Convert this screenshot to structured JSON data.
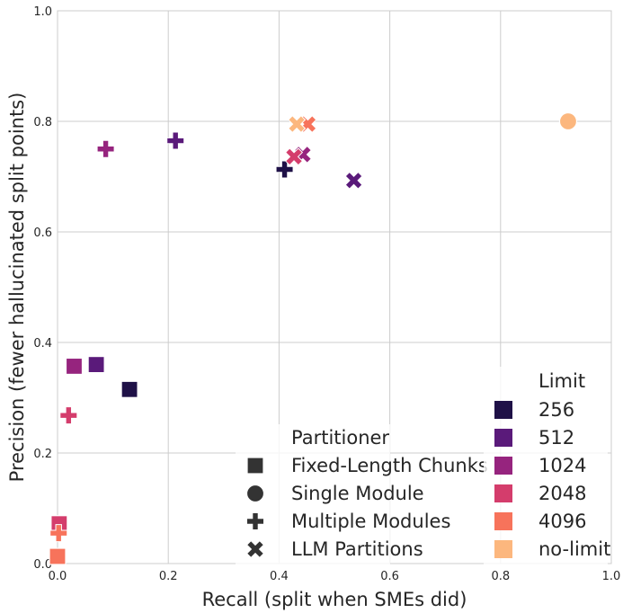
{
  "chart_data": {
    "type": "scatter",
    "xlabel": "Recall (split when SMEs did)",
    "ylabel": "Precision (fewer hallucinated split points)",
    "xlim": [
      0,
      1
    ],
    "ylim": [
      0,
      1
    ],
    "x_ticks": [
      "0.0",
      "0.2",
      "0.4",
      "0.6",
      "0.8",
      "1.0"
    ],
    "y_ticks": [
      "0.0",
      "0.2",
      "0.4",
      "0.6",
      "0.8",
      "1.0"
    ],
    "grid": true,
    "colors": {
      "256": "#1f1147",
      "512": "#5a1a7a",
      "1024": "#96247e",
      "2048": "#d43d6c",
      "4096": "#f7735b",
      "no-limit": "#fcb77e"
    },
    "points": [
      {
        "partitioner": "Fixed-Length Chunks",
        "limit": "256",
        "x": 0.13,
        "y": 0.315
      },
      {
        "partitioner": "Fixed-Length Chunks",
        "limit": "512",
        "x": 0.07,
        "y": 0.36
      },
      {
        "partitioner": "Fixed-Length Chunks",
        "limit": "1024",
        "x": 0.03,
        "y": 0.357
      },
      {
        "partitioner": "Fixed-Length Chunks",
        "limit": "2048",
        "x": 0.003,
        "y": 0.072
      },
      {
        "partitioner": "Fixed-Length Chunks",
        "limit": "4096",
        "x": 0.0,
        "y": 0.013
      },
      {
        "partitioner": "Single Module",
        "limit": "no-limit",
        "x": 0.922,
        "y": 0.8
      },
      {
        "partitioner": "Multiple Modules",
        "limit": "256",
        "x": 0.41,
        "y": 0.713
      },
      {
        "partitioner": "Multiple Modules",
        "limit": "512",
        "x": 0.213,
        "y": 0.765
      },
      {
        "partitioner": "Multiple Modules",
        "limit": "1024",
        "x": 0.087,
        "y": 0.75
      },
      {
        "partitioner": "Multiple Modules",
        "limit": "2048",
        "x": 0.02,
        "y": 0.268
      },
      {
        "partitioner": "Multiple Modules",
        "limit": "4096",
        "x": 0.002,
        "y": 0.055
      },
      {
        "partitioner": "LLM Partitions",
        "limit": "512",
        "x": 0.535,
        "y": 0.693
      },
      {
        "partitioner": "LLM Partitions",
        "limit": "1024",
        "x": 0.443,
        "y": 0.74
      },
      {
        "partitioner": "LLM Partitions",
        "limit": "2048",
        "x": 0.427,
        "y": 0.736
      },
      {
        "partitioner": "LLM Partitions",
        "limit": "4096",
        "x": 0.452,
        "y": 0.795
      },
      {
        "partitioner": "LLM Partitions",
        "limit": "no-limit",
        "x": 0.432,
        "y": 0.795
      }
    ],
    "legend_partitioner": {
      "title": "Partitioner",
      "entries": [
        {
          "label": "Fixed-Length Chunks",
          "marker": "square"
        },
        {
          "label": "Single Module",
          "marker": "circle"
        },
        {
          "label": "Multiple Modules",
          "marker": "plus"
        },
        {
          "label": "LLM Partitions",
          "marker": "x"
        }
      ]
    },
    "legend_limit": {
      "title": "Limit",
      "entries": [
        "256",
        "512",
        "1024",
        "2048",
        "4096",
        "no-limit"
      ]
    }
  }
}
